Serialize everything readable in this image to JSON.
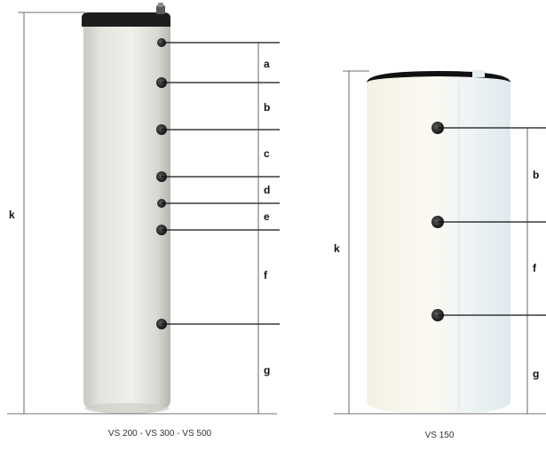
{
  "left_diagram": {
    "caption": "VS  200 - VS 300 - VS 500",
    "height_label": "k",
    "section_labels": [
      "a",
      "b",
      "c",
      "d",
      "e",
      "f",
      "g"
    ],
    "connection_count": 7
  },
  "right_diagram": {
    "caption": "VS 150",
    "height_label": "k",
    "section_labels": [
      "b",
      "f",
      "g"
    ],
    "connection_count": 3
  },
  "colors": {
    "tank_body": "#e9ece6",
    "tank_shadow": "#b9bcb5",
    "tank_cap": "#1a1a1a",
    "line": "#111111",
    "dimension_line": "#333333"
  }
}
